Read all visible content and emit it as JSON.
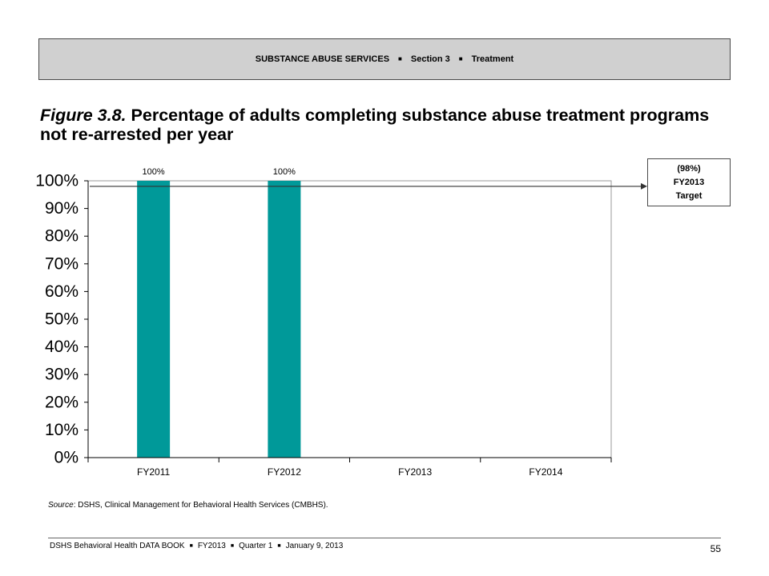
{
  "header": {
    "separator": "■",
    "items": [
      "SUBSTANCE ABUSE SERVICES",
      "Section 3",
      "Treatment"
    ]
  },
  "figure": {
    "label": "Figure 3.8."
  },
  "chart_data": {
    "type": "bar",
    "title": "Percentage of adults completing substance abuse treatment programs not re-arrested per year",
    "categories": [
      "FY2011",
      "FY2012",
      "FY2013",
      "FY2014"
    ],
    "values": [
      100,
      100,
      null,
      null
    ],
    "data_labels": [
      "100%",
      "100%",
      null,
      null
    ],
    "ylim": [
      0,
      100
    ],
    "yticks": [
      0,
      10,
      20,
      30,
      40,
      50,
      60,
      70,
      80,
      90,
      100
    ],
    "ytick_labels": [
      "0%",
      "10%",
      "20%",
      "30%",
      "40%",
      "50%",
      "60%",
      "70%",
      "80%",
      "90%",
      "100%"
    ],
    "bar_color": "#009999",
    "grid": false,
    "legend": "none",
    "target": {
      "value": 98,
      "label": [
        "(98%)",
        "FY2013",
        "Target"
      ]
    }
  },
  "source": {
    "label": "Source",
    "text": ": DSHS, Clinical Management for Behavioral Health Services (CMBHS)."
  },
  "footer": {
    "separator": "■",
    "items": [
      "DSHS Behavioral Health DATA BOOK",
      "FY2013",
      "Quarter 1",
      "January 9, 2013"
    ],
    "page_number": "55"
  }
}
